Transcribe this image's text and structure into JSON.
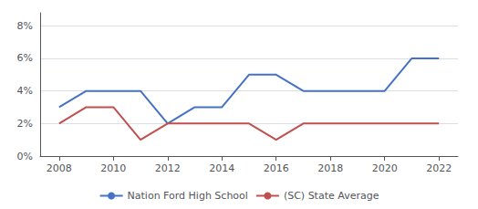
{
  "chart_data": {
    "type": "line",
    "x": [
      2008,
      2009,
      2010,
      2011,
      2012,
      2013,
      2014,
      2015,
      2016,
      2017,
      2018,
      2019,
      2020,
      2021,
      2022
    ],
    "series": [
      {
        "name": "Nation Ford High School",
        "color": "#4472C4",
        "values": [
          0.03,
          0.04,
          0.04,
          0.04,
          0.02,
          0.03,
          0.03,
          0.05,
          0.05,
          0.04,
          0.04,
          0.04,
          0.04,
          0.06,
          0.06
        ]
      },
      {
        "name": "(SC) State Average",
        "color": "#C0504D",
        "values": [
          0.02,
          0.03,
          0.03,
          0.01,
          0.02,
          0.02,
          0.02,
          0.02,
          0.01,
          0.02,
          0.02,
          0.02,
          0.02,
          0.02,
          0.02
        ]
      }
    ],
    "xlim": [
      2007.3,
      2022.7
    ],
    "xticks": [
      2008,
      2010,
      2012,
      2014,
      2016,
      2018,
      2020,
      2022
    ],
    "ylim": [
      0.0,
      0.088
    ],
    "yticks": [
      {
        "value": 0.0,
        "label": "0%"
      },
      {
        "value": 0.02,
        "label": "2%"
      },
      {
        "value": 0.04,
        "label": "4%"
      },
      {
        "value": 0.06,
        "label": "6%"
      },
      {
        "value": 0.08,
        "label": "8%"
      }
    ],
    "grid": true,
    "legend": "bottom"
  }
}
